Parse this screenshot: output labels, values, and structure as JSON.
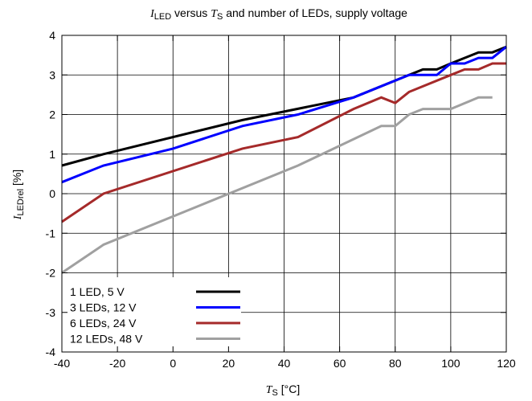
{
  "chart_data": {
    "type": "line",
    "title": {
      "var": "I",
      "sub": "LED",
      "mid": " versus ",
      "var2": "T",
      "sub2": "S",
      "rest": " and number of LEDs, supply voltage"
    },
    "xlabel": {
      "var": "T",
      "sub": "S",
      "unit": " [°C]"
    },
    "ylabel": {
      "var": "I",
      "sub": "LEDrel",
      "unit": " [%]"
    },
    "xlim": [
      -40,
      120
    ],
    "ylim": [
      -4,
      4
    ],
    "xticks": [
      "-40",
      "-20",
      "0",
      "20",
      "40",
      "60",
      "80",
      "100",
      "120"
    ],
    "yticks": [
      "-4",
      "-3",
      "-2",
      "-1",
      "0",
      "1",
      "2",
      "3",
      "4"
    ],
    "grid": true,
    "legend_position": "bottom-left",
    "series": [
      {
        "name": "1 LED, 5 V",
        "color": "#000000",
        "points": [
          [
            -40,
            0.71
          ],
          [
            -25,
            1.0
          ],
          [
            25,
            1.86
          ],
          [
            65,
            2.43
          ],
          [
            85,
            3.0
          ],
          [
            90,
            3.14
          ],
          [
            95,
            3.14
          ],
          [
            100,
            3.29
          ],
          [
            110,
            3.57
          ],
          [
            115,
            3.57
          ],
          [
            120,
            3.71
          ]
        ]
      },
      {
        "name": "3 LEDs, 12 V",
        "color": "#0000ff",
        "points": [
          [
            -40,
            0.29
          ],
          [
            -25,
            0.71
          ],
          [
            0,
            1.14
          ],
          [
            25,
            1.71
          ],
          [
            45,
            2.0
          ],
          [
            65,
            2.43
          ],
          [
            85,
            3.0
          ],
          [
            95,
            3.0
          ],
          [
            100,
            3.29
          ],
          [
            105,
            3.29
          ],
          [
            110,
            3.43
          ],
          [
            115,
            3.43
          ],
          [
            120,
            3.71
          ]
        ]
      },
      {
        "name": "6 LEDs, 24 V",
        "color": "#a52a2a",
        "points": [
          [
            -40,
            -0.71
          ],
          [
            -25,
            0.0
          ],
          [
            25,
            1.14
          ],
          [
            45,
            1.43
          ],
          [
            65,
            2.14
          ],
          [
            75,
            2.43
          ],
          [
            80,
            2.29
          ],
          [
            85,
            2.57
          ],
          [
            100,
            3.0
          ],
          [
            105,
            3.14
          ],
          [
            110,
            3.14
          ],
          [
            115,
            3.29
          ],
          [
            120,
            3.29
          ]
        ]
      },
      {
        "name": "12 LEDs, 48 V",
        "color": "#a0a0a0",
        "points": [
          [
            -40,
            -2.0
          ],
          [
            -25,
            -1.29
          ],
          [
            45,
            0.71
          ],
          [
            75,
            1.71
          ],
          [
            80,
            1.71
          ],
          [
            85,
            2.0
          ],
          [
            90,
            2.14
          ],
          [
            100,
            2.14
          ],
          [
            110,
            2.43
          ],
          [
            115,
            2.43
          ]
        ]
      }
    ]
  }
}
